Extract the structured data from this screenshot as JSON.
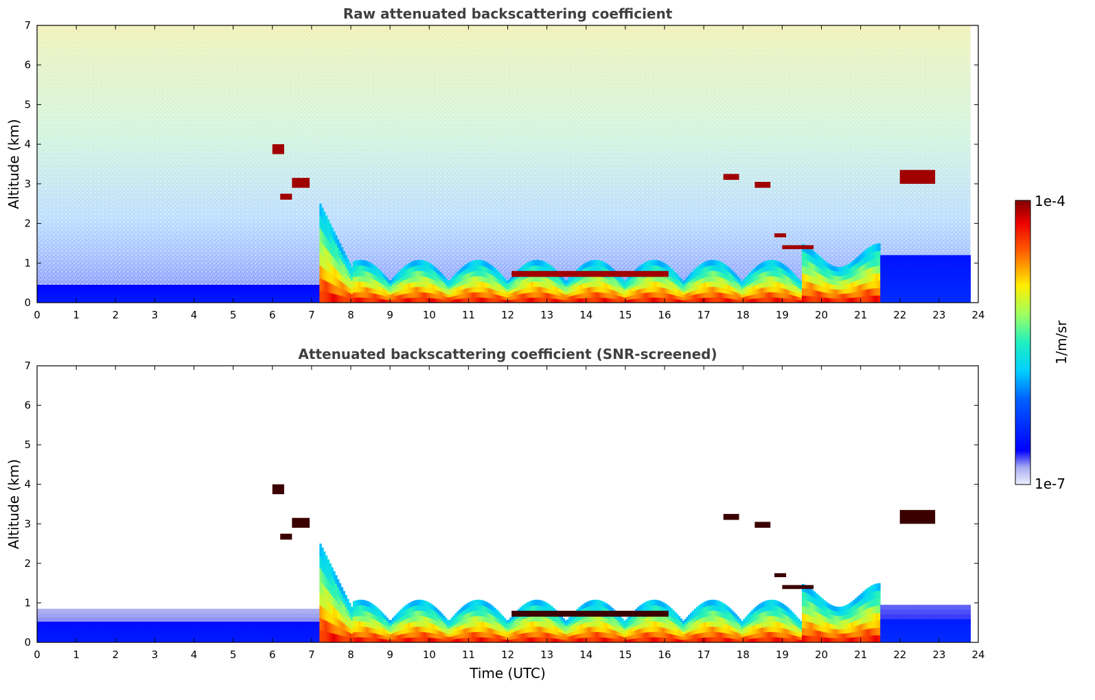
{
  "chart_data": [
    {
      "type": "heatmap",
      "title": "Raw attenuated backscattering coefficient",
      "xlabel": "",
      "ylabel": "Altitude (km)",
      "xlim": [
        0,
        24
      ],
      "ylim": [
        0,
        7
      ],
      "x_ticks": [
        "0",
        "1",
        "2",
        "3",
        "4",
        "5",
        "6",
        "7",
        "8",
        "9",
        "10",
        "11",
        "12",
        "13",
        "14",
        "15",
        "16",
        "17",
        "18",
        "19",
        "20",
        "21",
        "22",
        "23",
        "24"
      ],
      "y_ticks": [
        "0",
        "1",
        "2",
        "3",
        "4",
        "5",
        "6",
        "7"
      ],
      "grid": false,
      "layers": [
        {
          "x0": 0.0,
          "x1": 7.2,
          "top": 0.45,
          "level": 0.12
        },
        {
          "x0": 7.2,
          "x1": 21.5,
          "top": 0.9,
          "level": 0.85
        },
        {
          "x0": 21.5,
          "x1": 23.8,
          "top": 1.2,
          "level": 0.15
        }
      ],
      "clouds": [
        {
          "x0": 6.0,
          "x1": 6.3,
          "y0": 3.75,
          "y1": 4.0
        },
        {
          "x0": 6.5,
          "x1": 6.95,
          "y0": 2.9,
          "y1": 3.15
        },
        {
          "x0": 6.2,
          "x1": 6.5,
          "y0": 2.6,
          "y1": 2.75
        },
        {
          "x0": 12.1,
          "x1": 16.1,
          "y0": 0.65,
          "y1": 0.8
        },
        {
          "x0": 17.5,
          "x1": 17.9,
          "y0": 3.1,
          "y1": 3.25
        },
        {
          "x0": 18.3,
          "x1": 18.7,
          "y0": 2.9,
          "y1": 3.05
        },
        {
          "x0": 18.8,
          "x1": 19.1,
          "y0": 1.65,
          "y1": 1.75
        },
        {
          "x0": 19.0,
          "x1": 19.8,
          "y0": 1.35,
          "y1": 1.45
        },
        {
          "x0": 22.0,
          "x1": 22.9,
          "y0": 3.0,
          "y1": 3.35
        }
      ]
    },
    {
      "type": "heatmap",
      "title": "Attenuated backscattering coefficient (SNR-screened)",
      "xlabel": "Time (UTC)",
      "ylabel": "Altitude (km)",
      "xlim": [
        0,
        24
      ],
      "ylim": [
        0,
        7
      ],
      "x_ticks": [
        "0",
        "1",
        "2",
        "3",
        "4",
        "5",
        "6",
        "7",
        "8",
        "9",
        "10",
        "11",
        "12",
        "13",
        "14",
        "15",
        "16",
        "17",
        "18",
        "19",
        "20",
        "21",
        "22",
        "23",
        "24"
      ],
      "y_ticks": [
        "0",
        "1",
        "2",
        "3",
        "4",
        "5",
        "6",
        "7"
      ],
      "grid": false,
      "layers": [
        {
          "x0": 0.0,
          "x1": 7.2,
          "top": 0.85,
          "level": 0.12
        },
        {
          "x0": 7.2,
          "x1": 21.5,
          "top": 0.9,
          "level": 0.85
        },
        {
          "x0": 21.5,
          "x1": 23.8,
          "top": 0.95,
          "level": 0.15
        }
      ],
      "clouds": [
        {
          "x0": 6.0,
          "x1": 6.3,
          "y0": 3.75,
          "y1": 4.0
        },
        {
          "x0": 6.5,
          "x1": 6.95,
          "y0": 2.9,
          "y1": 3.15
        },
        {
          "x0": 6.2,
          "x1": 6.5,
          "y0": 2.6,
          "y1": 2.75
        },
        {
          "x0": 12.1,
          "x1": 16.1,
          "y0": 0.65,
          "y1": 0.8
        },
        {
          "x0": 17.5,
          "x1": 17.9,
          "y0": 3.1,
          "y1": 3.25
        },
        {
          "x0": 18.3,
          "x1": 18.7,
          "y0": 2.9,
          "y1": 3.05
        },
        {
          "x0": 18.8,
          "x1": 19.1,
          "y0": 1.65,
          "y1": 1.75
        },
        {
          "x0": 19.0,
          "x1": 19.8,
          "y0": 1.35,
          "y1": 1.45
        },
        {
          "x0": 22.0,
          "x1": 22.9,
          "y0": 3.0,
          "y1": 3.35
        }
      ]
    }
  ],
  "colorbar": {
    "label": "1/m/sr",
    "max_label": "1e-4",
    "min_label": "1e-7",
    "scale": "log",
    "colormap": "jet"
  }
}
